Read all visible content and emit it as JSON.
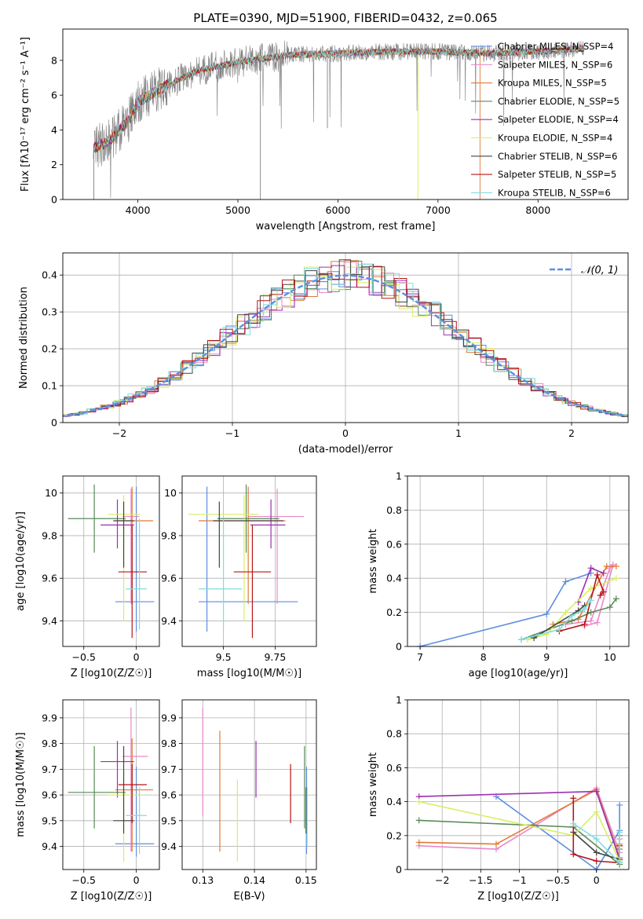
{
  "figure": {
    "title": "PLATE=0390, MJD=51900, FIBERID=0432, z=0.065"
  },
  "colors": {
    "data": "#808080",
    "series": [
      "#5b8ee0",
      "#e889c8",
      "#e07b39",
      "#5a8a5a",
      "#9b30b0",
      "#d8ee60",
      "#444444",
      "#b81414",
      "#7fdede"
    ],
    "normal": "#5b8ee0"
  },
  "chart_data": [
    {
      "id": "spectrum",
      "type": "line",
      "title": "PLATE=0390, MJD=51900, FIBERID=0432, z=0.065",
      "xlabel": "wavelength [Angstrom, rest frame]",
      "ylabel": "Flux [fλ10⁻¹⁷ erg cm⁻² s⁻¹ A⁻¹]",
      "xlim": [
        3250,
        8900
      ],
      "ylim": [
        0,
        9.8
      ],
      "xticks": [
        4000,
        5000,
        6000,
        7000,
        8000
      ],
      "yticks": [
        0,
        2,
        4,
        6,
        8
      ],
      "grid": false,
      "legend_position": "top-right",
      "data_trend": {
        "x": [
          3560,
          3700,
          3900,
          4000,
          4300,
          4600,
          5000,
          5500,
          6000,
          6500,
          7000,
          7500,
          8000,
          8450
        ],
        "y": [
          3.0,
          3.3,
          4.5,
          5.6,
          6.6,
          7.4,
          7.9,
          8.3,
          8.4,
          8.5,
          8.5,
          8.4,
          8.5,
          8.7
        ]
      },
      "series": [
        {
          "name": "Chabrier MILES, N_SSP=4"
        },
        {
          "name": "Salpeter MILES, N_SSP=6"
        },
        {
          "name": "Kroupa MILES, N_SSP=5"
        },
        {
          "name": "Chabrier ELODIE, N_SSP=5"
        },
        {
          "name": "Salpeter ELODIE, N_SSP=4"
        },
        {
          "name": "Kroupa ELODIE, N_SSP=4"
        },
        {
          "name": "Chabrier STELIB, N_SSP=6"
        },
        {
          "name": "Salpeter STELIB, N_SSP=5"
        },
        {
          "name": "Kroupa STELIB, N_SSP=6"
        }
      ]
    },
    {
      "id": "residuals",
      "type": "histogram",
      "xlabel": "(data-model)/error",
      "ylabel": "Normed distribution",
      "xlim": [
        -2.5,
        2.5
      ],
      "ylim": [
        0,
        0.46
      ],
      "xticks": [
        -2,
        -1,
        0,
        1,
        2
      ],
      "yticks": [
        0.0,
        0.1,
        0.2,
        0.3,
        0.4
      ],
      "grid": true,
      "legend_position": "top-right",
      "reference": {
        "name": "𝒩(0, 1)",
        "mu": 0,
        "sigma": 1
      }
    },
    {
      "id": "age_vs_Z",
      "type": "errorbar",
      "xlabel": "Z [log10(Z/Z☉)]",
      "ylabel": "age [log10(age/yr)]",
      "xlim": [
        -0.7,
        0.22
      ],
      "ylim": [
        9.28,
        10.08
      ],
      "xticks": [
        -0.5,
        0.0
      ],
      "yticks": [
        9.4,
        9.6,
        9.8,
        10.0
      ],
      "grid": true,
      "points": [
        {
          "x": 0.0,
          "y": 9.49,
          "xlo": -0.2,
          "xhi": 0.17,
          "ylo": 9.35,
          "yhi": 10.03
        },
        {
          "x": -0.05,
          "y": 9.89,
          "xlo": -0.13,
          "xhi": 0.03,
          "ylo": 9.48,
          "yhi": 10.02
        },
        {
          "x": -0.04,
          "y": 9.87,
          "xlo": -0.2,
          "xhi": 0.16,
          "ylo": 9.48,
          "yhi": 10.03
        },
        {
          "x": -0.4,
          "y": 9.88,
          "xlo": -0.65,
          "xhi": -0.1,
          "ylo": 9.72,
          "yhi": 10.04
        },
        {
          "x": -0.18,
          "y": 9.85,
          "xlo": -0.34,
          "xhi": -0.02,
          "ylo": 9.74,
          "yhi": 9.97
        },
        {
          "x": -0.12,
          "y": 9.9,
          "xlo": -0.27,
          "xhi": 0.04,
          "ylo": 9.4,
          "yhi": 9.99
        },
        {
          "x": -0.12,
          "y": 9.87,
          "xlo": -0.22,
          "xhi": -0.02,
          "ylo": 9.65,
          "yhi": 9.96
        },
        {
          "x": -0.04,
          "y": 9.63,
          "xlo": -0.17,
          "xhi": 0.1,
          "ylo": 9.32,
          "yhi": 9.85
        },
        {
          "x": 0.03,
          "y": 9.55,
          "xlo": -0.1,
          "xhi": 0.1,
          "ylo": 9.36,
          "yhi": 9.88
        }
      ]
    },
    {
      "id": "age_vs_mass",
      "type": "errorbar",
      "xlabel": "mass [log10(M/M☉)]",
      "ylabel": "",
      "xlim": [
        9.3,
        9.95
      ],
      "ylim": [
        9.28,
        10.08
      ],
      "xticks": [
        9.5,
        9.75
      ],
      "yticks": [
        9.4,
        9.6,
        9.8,
        10.0
      ],
      "grid": true,
      "points": [
        {
          "x": 9.42,
          "y": 9.49,
          "xlo": 9.38,
          "xhi": 9.86,
          "ylo": 9.35,
          "yhi": 10.03
        },
        {
          "x": 9.76,
          "y": 9.89,
          "xlo": 9.62,
          "xhi": 9.89,
          "ylo": 9.48,
          "yhi": 10.02
        },
        {
          "x": 9.62,
          "y": 9.87,
          "xlo": 9.38,
          "xhi": 9.8,
          "ylo": 9.48,
          "yhi": 10.03
        },
        {
          "x": 9.61,
          "y": 9.88,
          "xlo": 9.47,
          "xhi": 9.77,
          "ylo": 9.72,
          "yhi": 10.04
        },
        {
          "x": 9.73,
          "y": 9.85,
          "xlo": 9.63,
          "xhi": 9.8,
          "ylo": 9.74,
          "yhi": 9.97
        },
        {
          "x": 9.6,
          "y": 9.9,
          "xlo": 9.33,
          "xhi": 9.67,
          "ylo": 9.4,
          "yhi": 9.99
        },
        {
          "x": 9.48,
          "y": 9.87,
          "xlo": 9.45,
          "xhi": 9.79,
          "ylo": 9.65,
          "yhi": 9.96
        },
        {
          "x": 9.64,
          "y": 9.63,
          "xlo": 9.55,
          "xhi": 9.73,
          "ylo": 9.32,
          "yhi": 9.85
        },
        {
          "x": 9.5,
          "y": 9.55,
          "xlo": 9.38,
          "xhi": 9.59,
          "ylo": 9.36,
          "yhi": 9.88
        }
      ]
    },
    {
      "id": "weight_vs_age",
      "type": "line",
      "xlabel": "age [log10(age/yr)]",
      "ylabel": "mass weight",
      "xlim": [
        6.8,
        10.3
      ],
      "ylim": [
        0,
        1
      ],
      "xticks": [
        7,
        8,
        9,
        10
      ],
      "yticks": [
        0.0,
        0.2,
        0.4,
        0.6,
        0.8,
        1.0
      ],
      "grid": true,
      "series": [
        {
          "x": [
            7.0,
            9.0,
            9.3,
            9.7
          ],
          "y": [
            0.0,
            0.19,
            0.38,
            0.43
          ]
        },
        {
          "x": [
            9.6,
            9.8,
            10.05,
            10.0,
            9.7,
            9.3
          ],
          "y": [
            0.12,
            0.14,
            0.48,
            0.46,
            0.15,
            0.13
          ]
        },
        {
          "x": [
            9.1,
            9.5,
            9.95,
            10.1
          ],
          "y": [
            0.13,
            0.16,
            0.47,
            0.47
          ]
        },
        {
          "x": [
            8.6,
            9.4,
            9.7,
            10.0,
            10.1
          ],
          "y": [
            0.04,
            0.15,
            0.2,
            0.23,
            0.28
          ]
        },
        {
          "x": [
            9.5,
            9.7,
            9.9
          ],
          "y": [
            0.26,
            0.46,
            0.43
          ]
        },
        {
          "x": [
            8.7,
            9.0,
            9.3,
            9.7,
            10.1
          ],
          "y": [
            0.04,
            0.07,
            0.2,
            0.34,
            0.4
          ]
        },
        {
          "x": [
            8.8,
            9.5,
            9.6
          ],
          "y": [
            0.05,
            0.21,
            0.24
          ]
        },
        {
          "x": [
            9.2,
            9.6,
            9.8,
            9.9,
            9.85
          ],
          "y": [
            0.09,
            0.13,
            0.42,
            0.32,
            0.3
          ]
        },
        {
          "x": [
            8.6,
            9.2,
            9.4,
            9.6,
            9.7
          ],
          "y": [
            0.04,
            0.1,
            0.18,
            0.22,
            0.27
          ]
        }
      ]
    },
    {
      "id": "mass_vs_Z",
      "type": "errorbar",
      "xlabel": "Z [log10(Z/Z☉)]",
      "ylabel": "mass [log10(M/M☉)]",
      "xlim": [
        -0.7,
        0.22
      ],
      "ylim": [
        9.31,
        9.97
      ],
      "xticks": [
        -0.5,
        0.0
      ],
      "yticks": [
        9.4,
        9.5,
        9.6,
        9.7,
        9.8,
        9.9
      ],
      "grid": true,
      "points": [
        {
          "x": 0.0,
          "y": 9.41,
          "xlo": -0.2,
          "xhi": 0.17,
          "ylo": 9.36,
          "yhi": 9.71
        },
        {
          "x": -0.05,
          "y": 9.75,
          "xlo": -0.13,
          "xhi": 0.11,
          "ylo": 9.38,
          "yhi": 9.94
        },
        {
          "x": -0.04,
          "y": 9.62,
          "xlo": -0.2,
          "xhi": 0.16,
          "ylo": 9.38,
          "yhi": 9.82
        },
        {
          "x": -0.4,
          "y": 9.61,
          "xlo": -0.65,
          "xhi": -0.1,
          "ylo": 9.47,
          "yhi": 9.79
        },
        {
          "x": -0.18,
          "y": 9.73,
          "xlo": -0.34,
          "xhi": -0.02,
          "ylo": 9.59,
          "yhi": 9.81
        },
        {
          "x": -0.12,
          "y": 9.6,
          "xlo": -0.27,
          "xhi": 0.04,
          "ylo": 9.34,
          "yhi": 9.66
        },
        {
          "x": -0.12,
          "y": 9.5,
          "xlo": -0.22,
          "xhi": -0.02,
          "ylo": 9.45,
          "yhi": 9.79
        },
        {
          "x": -0.04,
          "y": 9.64,
          "xlo": -0.17,
          "xhi": 0.1,
          "ylo": 9.49,
          "yhi": 9.72
        },
        {
          "x": 0.03,
          "y": 9.52,
          "xlo": -0.1,
          "xhi": 0.1,
          "ylo": 9.37,
          "yhi": 9.63
        }
      ]
    },
    {
      "id": "mass_vs_EBV",
      "type": "errorbar",
      "xlabel": "E(B-V)",
      "ylabel": "",
      "xlim": [
        0.126,
        0.152
      ],
      "ylim": [
        9.31,
        9.97
      ],
      "xticks": [
        0.13,
        0.14,
        0.15
      ],
      "yticks": [
        9.4,
        9.5,
        9.6,
        9.7,
        9.8,
        9.9
      ],
      "grid": true,
      "points": [
        {
          "x": 0.1501,
          "y": 9.53,
          "ylo": 9.37,
          "yhi": 9.71
        },
        {
          "x": 0.13,
          "y": 9.7,
          "ylo": 9.52,
          "yhi": 9.94
        },
        {
          "x": 0.1333,
          "y": 9.61,
          "ylo": 9.38,
          "yhi": 9.85
        },
        {
          "x": 0.1497,
          "y": 9.61,
          "ylo": 9.47,
          "yhi": 9.79
        },
        {
          "x": 0.1403,
          "y": 9.7,
          "ylo": 9.59,
          "yhi": 9.81
        },
        {
          "x": 0.1367,
          "y": 9.5,
          "ylo": 9.34,
          "yhi": 9.66
        },
        {
          "x": 0.15,
          "y": 9.55,
          "ylo": 9.45,
          "yhi": 9.63
        },
        {
          "x": 0.147,
          "y": 9.6,
          "ylo": 9.49,
          "yhi": 9.72
        },
        {
          "x": 0.1502,
          "y": 9.52,
          "ylo": 9.4,
          "yhi": 9.63
        }
      ]
    },
    {
      "id": "weight_vs_Z",
      "type": "line",
      "xlabel": "Z [log10(Z/Z☉)]",
      "ylabel": "mass weight",
      "xlim": [
        -2.45,
        0.42
      ],
      "ylim": [
        0,
        1
      ],
      "xticks": [
        -2.0,
        -1.5,
        -1.0,
        -0.5,
        0.0
      ],
      "yticks": [
        0.0,
        0.2,
        0.4,
        0.6,
        0.8,
        1.0
      ],
      "grid": true,
      "series": [
        {
          "x": [
            -1.3,
            0.0,
            0.3,
            0.3
          ],
          "y": [
            0.43,
            0.0,
            0.23,
            0.38
          ]
        },
        {
          "x": [
            -2.3,
            -1.3,
            0.0,
            0.3,
            0.3,
            0.3
          ],
          "y": [
            0.14,
            0.12,
            0.48,
            0.1,
            0.05,
            0.18
          ]
        },
        {
          "x": [
            -2.3,
            -1.3,
            0.0,
            0.3,
            0.3
          ],
          "y": [
            0.16,
            0.15,
            0.47,
            0.07,
            0.15
          ]
        },
        {
          "x": [
            -2.3,
            -0.3,
            0.3,
            0.3,
            0.3
          ],
          "y": [
            0.29,
            0.25,
            0.03,
            0.12,
            0.2
          ]
        },
        {
          "x": [
            -2.3,
            0.0,
            0.3
          ],
          "y": [
            0.43,
            0.46,
            0.06
          ]
        },
        {
          "x": [
            -2.3,
            -0.3,
            0.0,
            0.3
          ],
          "y": [
            0.4,
            0.2,
            0.34,
            0.05
          ]
        },
        {
          "x": [
            -0.3,
            0.0,
            0.3
          ],
          "y": [
            0.22,
            0.1,
            0.06
          ]
        },
        {
          "x": [
            -0.3,
            -0.3,
            0.0,
            0.3,
            0.3
          ],
          "y": [
            0.42,
            0.09,
            0.05,
            0.04,
            0.14
          ]
        },
        {
          "x": [
            -0.3,
            0.0,
            0.3,
            0.3
          ],
          "y": [
            0.27,
            0.18,
            0.04,
            0.22
          ]
        }
      ]
    }
  ]
}
